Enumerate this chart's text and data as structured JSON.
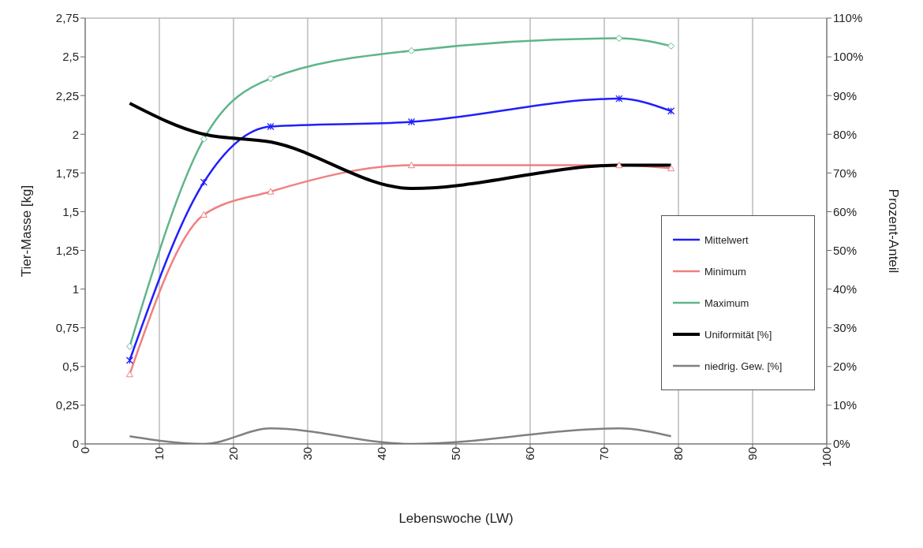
{
  "chart_data": {
    "type": "line",
    "xlabel": "Lebenswoche (LW)",
    "ylabel": "Tier-Masse [kg]",
    "y2label": "Prozent-Anteil",
    "x": [
      6,
      16,
      25,
      44,
      72,
      79
    ],
    "series": [
      {
        "name": "Mittelwert",
        "color": "#1f1fff",
        "values": [
          0.54,
          1.69,
          2.05,
          2.08,
          2.23,
          2.15
        ],
        "marker": "cross"
      },
      {
        "name": "Minimum",
        "color": "#f08080",
        "values": [
          0.45,
          1.48,
          1.63,
          1.8,
          1.8,
          1.78
        ],
        "marker": "triangle"
      },
      {
        "name": "Maximum",
        "color": "#5fb58a",
        "values": [
          0.63,
          1.97,
          2.36,
          2.54,
          2.62,
          2.57
        ],
        "marker": "diamond"
      },
      {
        "name": "Uniformität [%]",
        "color": "#000000",
        "values": [
          88,
          80,
          78,
          66,
          72,
          72
        ],
        "axis": "y2",
        "marker": "none"
      },
      {
        "name": "niedrig. Gew. [%]",
        "color": "#808080",
        "values": [
          2,
          0,
          4,
          0,
          4,
          2
        ],
        "axis": "y2",
        "marker": "none"
      }
    ],
    "xlim": [
      0,
      100
    ],
    "xticks": [
      0,
      10,
      20,
      30,
      40,
      50,
      60,
      70,
      80,
      90,
      100
    ],
    "ylim": [
      0,
      2.75
    ],
    "yticks": [
      0,
      {
        "value": 0.25,
        "label": "0,25"
      },
      {
        "value": 0.5,
        "label": "0,5"
      },
      {
        "value": 0.75,
        "label": "0,75"
      },
      1,
      {
        "value": 1.25,
        "label": "1,25"
      },
      {
        "value": 1.5,
        "label": "1,5"
      },
      {
        "value": 1.75,
        "label": "1,75"
      },
      2,
      {
        "value": 2.25,
        "label": "2,25"
      },
      {
        "value": 2.5,
        "label": "2,5"
      },
      {
        "value": 2.75,
        "label": "2,75"
      }
    ],
    "y2lim": [
      0,
      110
    ],
    "y2ticks": [
      {
        "value": 0,
        "label": "0%"
      },
      {
        "value": 10,
        "label": "10%"
      },
      {
        "value": 20,
        "label": "20%"
      },
      {
        "value": 30,
        "label": "30%"
      },
      {
        "value": 40,
        "label": "40%"
      },
      {
        "value": 50,
        "label": "50%"
      },
      {
        "value": 60,
        "label": "60%"
      },
      {
        "value": 70,
        "label": "70%"
      },
      {
        "value": 80,
        "label": "80%"
      },
      {
        "value": 90,
        "label": "90%"
      },
      {
        "value": 100,
        "label": "100%"
      },
      {
        "value": 110,
        "label": "110%"
      }
    ],
    "grid": true,
    "legend": "right",
    "line_style": "solid"
  }
}
